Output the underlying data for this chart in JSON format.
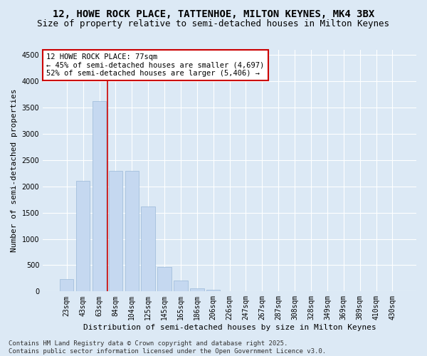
{
  "title": "12, HOWE ROCK PLACE, TATTENHOE, MILTON KEYNES, MK4 3BX",
  "subtitle": "Size of property relative to semi-detached houses in Milton Keynes",
  "xlabel": "Distribution of semi-detached houses by size in Milton Keynes",
  "ylabel": "Number of semi-detached properties",
  "categories": [
    "23sqm",
    "43sqm",
    "63sqm",
    "84sqm",
    "104sqm",
    "125sqm",
    "145sqm",
    "165sqm",
    "186sqm",
    "206sqm",
    "226sqm",
    "247sqm",
    "267sqm",
    "287sqm",
    "308sqm",
    "328sqm",
    "349sqm",
    "369sqm",
    "389sqm",
    "410sqm",
    "430sqm"
  ],
  "values": [
    230,
    2100,
    3620,
    2300,
    2300,
    1620,
    460,
    210,
    60,
    30,
    0,
    0,
    0,
    0,
    0,
    0,
    0,
    0,
    0,
    0,
    0
  ],
  "bar_color": "#c5d8f0",
  "bar_edge_color": "#9ab8d8",
  "red_line_x": 2.5,
  "annotation_title": "12 HOWE ROCK PLACE: 77sqm",
  "annotation_line1": "← 45% of semi-detached houses are smaller (4,697)",
  "annotation_line2": "52% of semi-detached houses are larger (5,406) →",
  "annotation_box_color": "#ffffff",
  "annotation_box_edge_color": "#cc0000",
  "ylim": [
    0,
    4600
  ],
  "yticks": [
    0,
    500,
    1000,
    1500,
    2000,
    2500,
    3000,
    3500,
    4000,
    4500
  ],
  "bg_color": "#dce9f5",
  "grid_color": "#ffffff",
  "footer_line1": "Contains HM Land Registry data © Crown copyright and database right 2025.",
  "footer_line2": "Contains public sector information licensed under the Open Government Licence v3.0.",
  "title_fontsize": 10,
  "subtitle_fontsize": 9,
  "axis_label_fontsize": 8,
  "tick_fontsize": 7,
  "annotation_fontsize": 7.5,
  "footer_fontsize": 6.5
}
